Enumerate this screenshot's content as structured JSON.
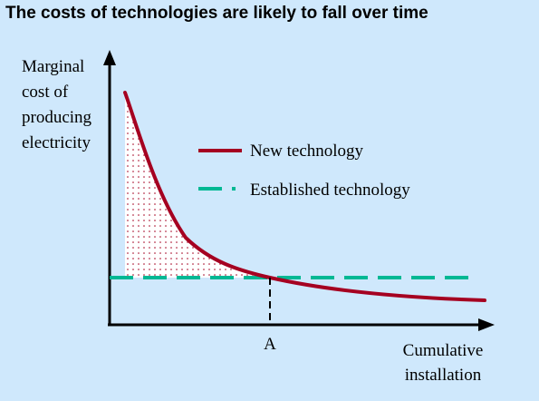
{
  "title": "The costs of technologies are likely to fall over time",
  "y_axis_label": [
    "Marginal",
    "cost of",
    "producing",
    "electricity"
  ],
  "x_axis_label": [
    "Cumulative",
    "installation"
  ],
  "crossover_label": "A",
  "legend": {
    "new_technology": "New technology",
    "established_technology": "Established technology"
  },
  "colors": {
    "background": "#cfe8fc",
    "new_technology": "#a50021",
    "established_technology": "#00b894",
    "shaded_area": "#ffffff",
    "shaded_dots": "#a50021"
  }
}
